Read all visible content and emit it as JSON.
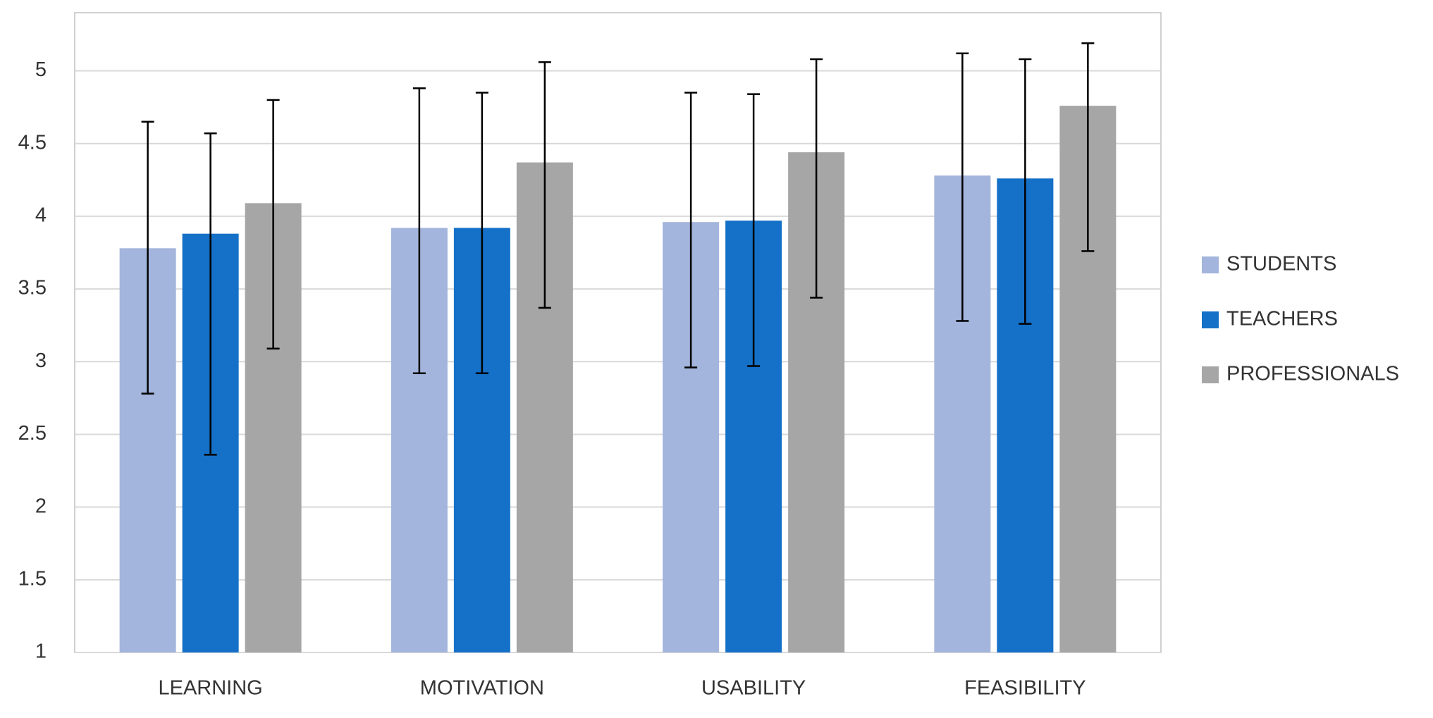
{
  "chart_data": {
    "type": "bar",
    "categories": [
      "LEARNING",
      "MOTIVATION",
      "USABILITY",
      "FEASIBILITY"
    ],
    "series": [
      {
        "name": "STUDENTS",
        "color": "#a3b5dc",
        "values": [
          3.78,
          3.92,
          3.96,
          4.28
        ],
        "err_minus": [
          1.0,
          1.0,
          1.0,
          1.0
        ],
        "err_plus": [
          0.87,
          0.96,
          0.89,
          0.84
        ]
      },
      {
        "name": "TEACHERS",
        "color": "#1570c8",
        "values": [
          3.88,
          3.92,
          3.97,
          4.26
        ],
        "err_minus": [
          1.52,
          1.0,
          1.0,
          1.0
        ],
        "err_plus": [
          0.69,
          0.93,
          0.87,
          0.82
        ]
      },
      {
        "name": "PROFESSIONALS",
        "color": "#a6a6a6",
        "values": [
          4.09,
          4.37,
          4.44,
          4.76
        ],
        "err_minus": [
          1.0,
          1.0,
          1.0,
          1.0
        ],
        "err_plus": [
          0.71,
          0.69,
          0.64,
          0.43
        ]
      }
    ],
    "ylim": [
      1,
      5.4
    ],
    "yticks": [
      1,
      1.5,
      2,
      2.5,
      3,
      3.5,
      4,
      4.5,
      5
    ],
    "grid": true,
    "legend": "right"
  }
}
